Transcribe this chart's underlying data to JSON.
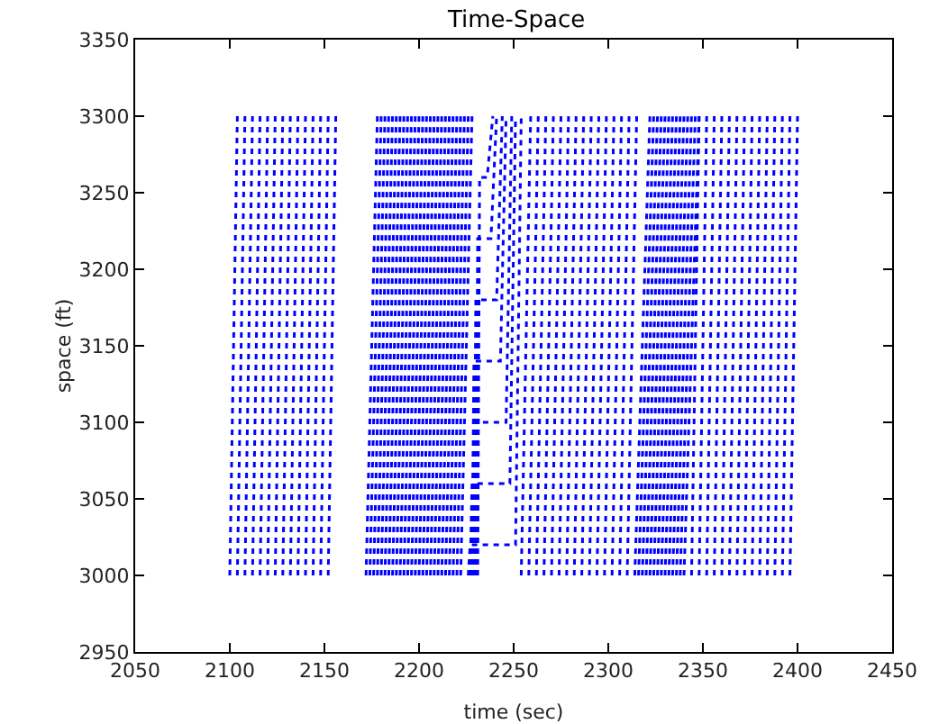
{
  "chart_data": {
    "type": "line",
    "title": "Time-Space",
    "xlabel": "time (sec)",
    "ylabel": "space (ft)",
    "xlim": [
      2050,
      2450
    ],
    "ylim": [
      2950,
      3350
    ],
    "xticks": [
      2050,
      2100,
      2150,
      2200,
      2250,
      2300,
      2350,
      2400,
      2450
    ],
    "yticks": [
      2950,
      3000,
      3050,
      3100,
      3150,
      3200,
      3250,
      3300,
      3350
    ],
    "marker": "none",
    "line_style": "dotted",
    "series": [
      {
        "color": "#0000ff",
        "x": [
          2100,
          2104,
          null,
          2104,
          2108,
          null,
          2108,
          2112,
          null,
          2112,
          2116,
          null,
          2116,
          2120,
          null,
          2120,
          2124,
          null,
          2124,
          2128,
          null,
          2128,
          2132,
          null,
          2132,
          2136,
          null,
          2136,
          2140,
          null,
          2140,
          2144,
          null,
          2144,
          2148,
          null,
          2148,
          2152,
          null,
          2152,
          2156,
          null
        ],
        "values": [
          3000,
          3300,
          null,
          3000,
          3300,
          null,
          3000,
          3300,
          null,
          3000,
          3300,
          null,
          3000,
          3300,
          null,
          3000,
          3300,
          null,
          3000,
          3300,
          null,
          3000,
          3300,
          null,
          3000,
          3300,
          null,
          3000,
          3300,
          null,
          3000,
          3300,
          null,
          3000,
          3300,
          null,
          3000,
          3300,
          null,
          3000,
          3300,
          null
        ]
      },
      {
        "color": "#0000ff",
        "x": [
          2172,
          2178,
          null,
          2174,
          2180,
          null,
          2176,
          2182,
          null,
          2178,
          2184,
          null,
          2180,
          2186,
          null,
          2182,
          2188,
          null,
          2184,
          2190,
          null,
          2186,
          2192,
          null,
          2188,
          2194,
          null,
          2190,
          2196,
          null,
          2192,
          2198,
          null,
          2194,
          2200,
          null,
          2196,
          2202,
          null,
          2198,
          2204,
          null,
          2200,
          2206,
          null,
          2202,
          2208,
          null,
          2204,
          2210,
          null,
          2206,
          2212,
          null,
          2208,
          2214,
          null,
          2210,
          2216,
          null,
          2212,
          2218,
          null,
          2214,
          2220,
          null,
          2216,
          2222,
          null,
          2218,
          2224,
          null,
          2220,
          2226,
          null,
          2222,
          2228,
          null
        ],
        "values": [
          3000,
          3300,
          null,
          3000,
          3300,
          null,
          3000,
          3300,
          null,
          3000,
          3300,
          null,
          3000,
          3300,
          null,
          3000,
          3300,
          null,
          3000,
          3300,
          null,
          3000,
          3300,
          null,
          3000,
          3300,
          null,
          3000,
          3300,
          null,
          3000,
          3300,
          null,
          3000,
          3300,
          null,
          3000,
          3300,
          null,
          3000,
          3300,
          null,
          3000,
          3300,
          null,
          3000,
          3300,
          null,
          3000,
          3300,
          null,
          3000,
          3300,
          null,
          3000,
          3300,
          null,
          3000,
          3300,
          null,
          3000,
          3300,
          null,
          3000,
          3300,
          null,
          3000,
          3300,
          null,
          3000,
          3300,
          null,
          3000,
          3300,
          null,
          3000,
          3300,
          null
        ]
      },
      {
        "color": "#0000ff",
        "x": [
          2226,
          2227,
          2251,
          2254,
          null,
          2227,
          2228,
          2248,
          2251,
          null,
          2228,
          2229,
          2246,
          2249,
          null,
          2228,
          2229,
          2243,
          2246,
          null,
          2229,
          2230,
          2241,
          2244,
          null,
          2230,
          2231,
          2238,
          2241,
          null,
          2231,
          2232,
          2236,
          2239,
          null
        ],
        "values": [
          3000,
          3020,
          3020,
          3300,
          null,
          3000,
          3060,
          3060,
          3300,
          null,
          3000,
          3100,
          3100,
          3300,
          null,
          3000,
          3140,
          3140,
          3300,
          null,
          3000,
          3180,
          3180,
          3300,
          null,
          3000,
          3220,
          3220,
          3300,
          null,
          3000,
          3260,
          3260,
          3300,
          null
        ]
      },
      {
        "color": "#0000ff",
        "x": [
          2254,
          2259,
          null,
          2258,
          2263,
          null,
          2262,
          2267,
          null,
          2266,
          2271,
          null,
          2270,
          2275,
          null,
          2274,
          2279,
          null,
          2278,
          2283,
          null,
          2282,
          2287,
          null,
          2286,
          2291,
          null,
          2290,
          2295,
          null,
          2294,
          2299,
          null,
          2298,
          2303,
          null,
          2302,
          2307,
          null,
          2306,
          2311,
          null,
          2310,
          2315,
          null
        ],
        "values": [
          3000,
          3300,
          null,
          3000,
          3300,
          null,
          3000,
          3300,
          null,
          3000,
          3300,
          null,
          3000,
          3300,
          null,
          3000,
          3300,
          null,
          3000,
          3300,
          null,
          3000,
          3300,
          null,
          3000,
          3300,
          null,
          3000,
          3300,
          null,
          3000,
          3300,
          null,
          3000,
          3300,
          null,
          3000,
          3300,
          null,
          3000,
          3300,
          null,
          3000,
          3300,
          null
        ]
      },
      {
        "color": "#0000ff",
        "x": [
          2314,
          2322,
          null,
          2316,
          2324,
          null,
          2318,
          2326,
          null,
          2320,
          2328,
          null,
          2322,
          2330,
          null,
          2324,
          2332,
          null,
          2326,
          2334,
          null,
          2328,
          2336,
          null,
          2330,
          2338,
          null,
          2332,
          2340,
          null,
          2334,
          2342,
          null,
          2336,
          2344,
          null,
          2338,
          2346,
          null,
          2340,
          2348,
          null
        ],
        "values": [
          3000,
          3300,
          null,
          3000,
          3300,
          null,
          3000,
          3300,
          null,
          3000,
          3300,
          null,
          3000,
          3300,
          null,
          3000,
          3300,
          null,
          3000,
          3300,
          null,
          3000,
          3300,
          null,
          3000,
          3300,
          null,
          3000,
          3300,
          null,
          3000,
          3300,
          null,
          3000,
          3300,
          null,
          3000,
          3300,
          null,
          3000,
          3300,
          null
        ]
      },
      {
        "color": "#0000ff",
        "x": [
          2344,
          2348,
          null,
          2348,
          2352,
          null,
          2352,
          2356,
          null,
          2356,
          2360,
          null,
          2360,
          2364,
          null,
          2364,
          2368,
          null,
          2368,
          2372,
          null,
          2372,
          2376,
          null,
          2376,
          2380,
          null,
          2380,
          2384,
          null,
          2384,
          2388,
          null,
          2388,
          2392,
          null,
          2392,
          2396,
          null,
          2396,
          2400,
          null
        ],
        "values": [
          3000,
          3300,
          null,
          3000,
          3300,
          null,
          3000,
          3300,
          null,
          3000,
          3300,
          null,
          3000,
          3300,
          null,
          3000,
          3300,
          null,
          3000,
          3300,
          null,
          3000,
          3300,
          null,
          3000,
          3300,
          null,
          3000,
          3300,
          null,
          3000,
          3300,
          null,
          3000,
          3300,
          null,
          3000,
          3300,
          null,
          3000,
          3300,
          null
        ]
      }
    ]
  }
}
